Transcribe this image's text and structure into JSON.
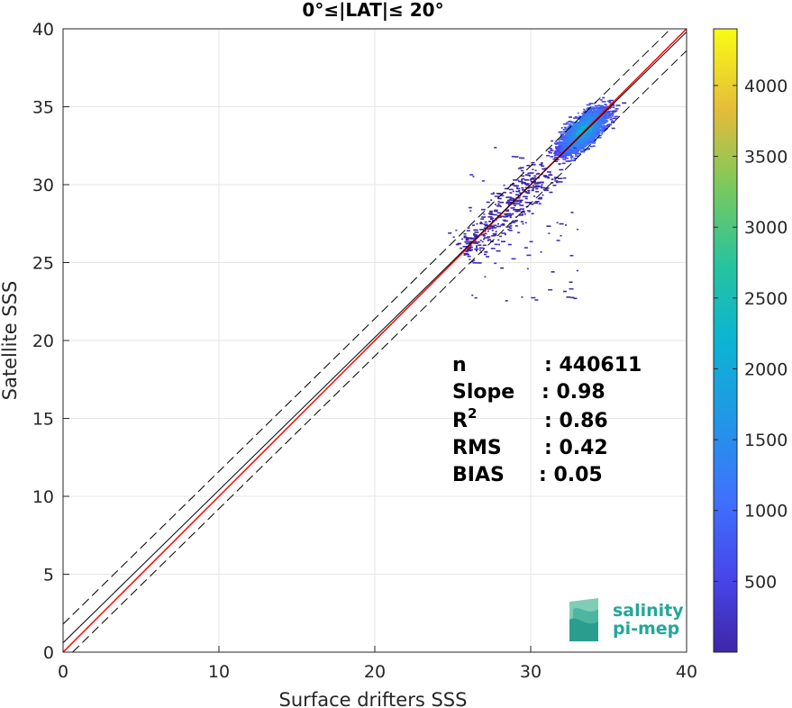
{
  "chart_data": {
    "type": "heatmap",
    "title": "0°≤|LAT|≤ 20°",
    "xlabel": "Surface drifters SSS",
    "ylabel": "Satellite SSS",
    "xlim": [
      0,
      40
    ],
    "ylim": [
      0,
      40
    ],
    "xticks": [
      "0",
      "10",
      "20",
      "30",
      "40"
    ],
    "yticks": [
      "0",
      "5",
      "10",
      "15",
      "20",
      "25",
      "30",
      "35",
      "40"
    ],
    "grid": true,
    "colorbar": {
      "range": [
        0,
        4400
      ],
      "ticks": [
        "500",
        "1000",
        "1500",
        "2000",
        "2500",
        "3000",
        "3500",
        "4000"
      ],
      "colormap": "parula"
    },
    "lines": [
      {
        "style": "solid",
        "color": "#ff0000",
        "x": [
          0,
          40
        ],
        "y": [
          0,
          40
        ]
      },
      {
        "style": "solid",
        "color": "#000000",
        "x": [
          0,
          40
        ],
        "y": [
          0.6,
          39.8
        ]
      },
      {
        "style": "dashed",
        "color": "#000000",
        "x": [
          0,
          40
        ],
        "y": [
          1.8,
          41.0
        ]
      },
      {
        "style": "dashed",
        "color": "#000000",
        "x": [
          0,
          40
        ],
        "y": [
          -0.6,
          38.6
        ]
      }
    ],
    "density": {
      "core_center": [
        33.3,
        33.5
      ],
      "extent_x": [
        23.0,
        37.0
      ],
      "extent_y": [
        22.5,
        37.2
      ],
      "peak_count": 4300
    },
    "stats": [
      {
        "label": "n",
        "value": ": 440611"
      },
      {
        "label": "Slope",
        "value": ": 0.98"
      },
      {
        "label": "R",
        "sup": "2",
        "value": ": 0.86"
      },
      {
        "label": "RMS",
        "value": ": 0.42"
      },
      {
        "label": "BIAS",
        "value": ": 0.05"
      }
    ]
  },
  "logo": {
    "line1": "salinity",
    "line2": "pi-mep"
  }
}
